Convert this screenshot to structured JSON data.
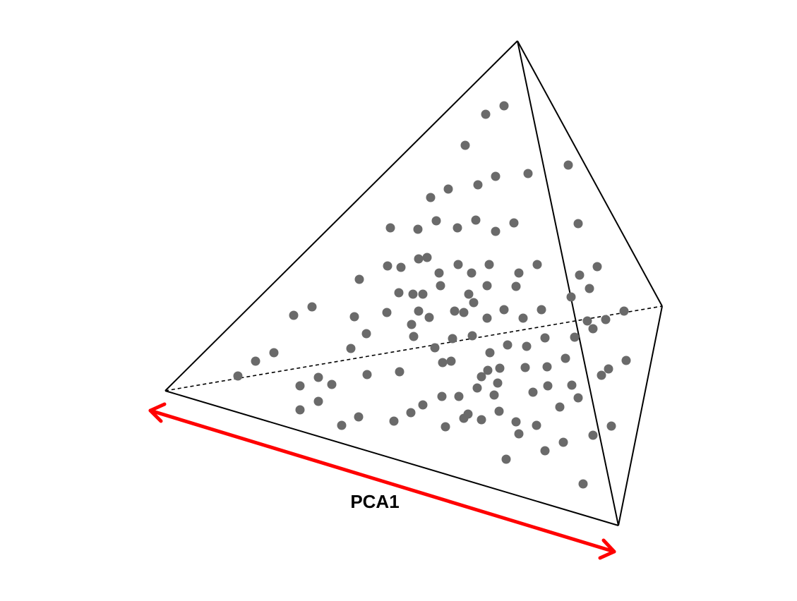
{
  "figure": {
    "axis_label": "PCA1",
    "colors": {
      "edges": "#000000",
      "points": "#6a6a6a",
      "arrow": "#ff0000",
      "background": "#ffffff"
    },
    "shape": "tetrahedron",
    "point_count": 117
  }
}
